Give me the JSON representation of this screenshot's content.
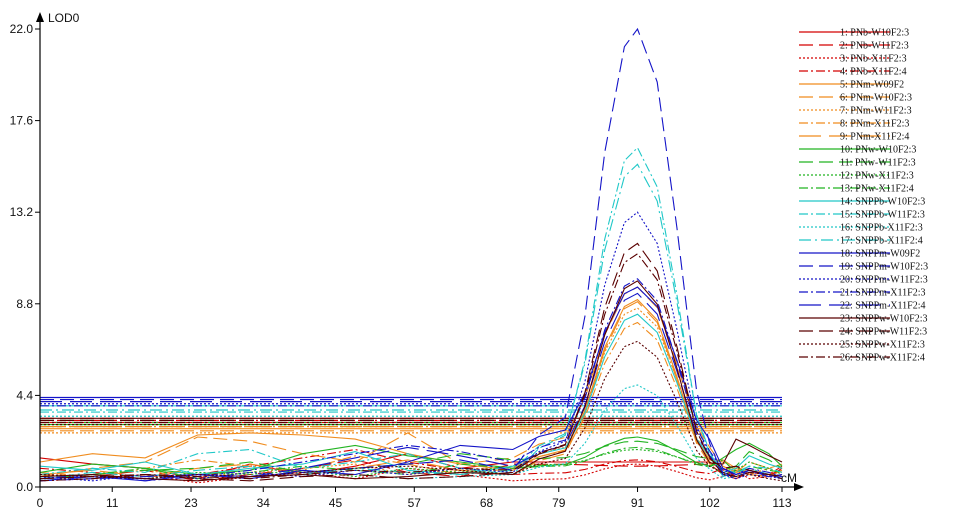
{
  "chart_data": {
    "type": "line",
    "title": "",
    "ylabel": "LOD0",
    "xlabel": "cM",
    "xlim": [
      0,
      113
    ],
    "ylim": [
      0,
      22
    ],
    "x_ticks": [
      "0",
      "11",
      "23",
      "34",
      "45",
      "57",
      "68",
      "79",
      "91",
      "102",
      "113"
    ],
    "x_tick_values": [
      0,
      11,
      23,
      34,
      45,
      57,
      68,
      79,
      91,
      102,
      113
    ],
    "y_ticks": [
      "0.0",
      "4.4",
      "8.8",
      "13.2",
      "17.6",
      "22.0"
    ],
    "y_tick_values": [
      0,
      4.4,
      8.8,
      13.2,
      17.6,
      22.0
    ],
    "legend_position": "right",
    "series": [
      {
        "name": "1: PNb-W10F2:3",
        "color": "#d40000",
        "dash": "solid",
        "threshold": 3.1,
        "peak": 1.2,
        "base": [
          1.4,
          1.1,
          0.9,
          0.4,
          1.1,
          0.6,
          1.0,
          1.6,
          0.9,
          1.2,
          0.8,
          1.0,
          0.6,
          0.5,
          0.9
        ]
      },
      {
        "name": "2: PNb-W11F2:3",
        "color": "#d40000",
        "dash": "longdash",
        "threshold": 3.3,
        "peak": 1.0,
        "base": [
          0.6,
          0.5,
          0.8,
          0.3,
          0.6,
          0.9,
          1.3,
          0.7,
          0.5,
          1.1,
          0.6,
          0.4,
          0.7,
          0.6,
          0.8
        ]
      },
      {
        "name": "3: PNb-X11F2:3",
        "color": "#d40000",
        "dash": "dot",
        "threshold": 3.0,
        "peak": 1.1,
        "base": [
          0.3,
          0.4,
          0.6,
          0.2,
          0.5,
          0.7,
          0.4,
          0.9,
          0.6,
          0.3,
          0.5,
          0.8,
          0.4,
          0.5,
          0.6
        ]
      },
      {
        "name": "4: PNb-X11F2:4",
        "color": "#d40000",
        "dash": "dashdot",
        "threshold": 3.2,
        "peak": 1.3,
        "base": [
          0.9,
          0.7,
          0.5,
          0.6,
          1.0,
          1.4,
          1.8,
          1.2,
          0.8,
          0.6,
          0.9,
          0.5,
          0.7,
          0.6,
          1.0
        ]
      },
      {
        "name": "5: PNm-W09F2",
        "color": "#f08c1e",
        "dash": "solid",
        "threshold": 2.8,
        "peak": 9.0,
        "base": [
          1.2,
          1.6,
          1.4,
          2.5,
          2.6,
          2.5,
          2.3,
          1.6,
          1.1,
          0.8,
          1.3,
          0.9,
          0.6,
          0.5,
          0.8
        ]
      },
      {
        "name": "6: PNm-W10F2:3",
        "color": "#f08c1e",
        "dash": "longdash",
        "threshold": 2.7,
        "peak": 9.6,
        "base": [
          0.5,
          0.9,
          1.2,
          2.4,
          2.2,
          1.6,
          1.2,
          2.6,
          1.1,
          1.4,
          1.0,
          0.7,
          1.2,
          0.9,
          1.1
        ]
      },
      {
        "name": "7: PNm-W11F2:3",
        "color": "#f08c1e",
        "dash": "dot",
        "threshold": 2.6,
        "peak": 8.6,
        "base": [
          0.4,
          0.6,
          0.8,
          0.5,
          0.7,
          0.9,
          1.1,
          0.6,
          0.8,
          1.0,
          0.7,
          0.5,
          0.9,
          0.6,
          0.7
        ]
      },
      {
        "name": "8: PNm-X11F2:3",
        "color": "#f08c1e",
        "dash": "dashdot",
        "threshold": 2.9,
        "peak": 7.9,
        "base": [
          0.7,
          0.5,
          0.9,
          1.3,
          1.0,
          0.8,
          1.5,
          1.1,
          0.6,
          0.9,
          1.2,
          0.8,
          0.6,
          0.9,
          0.7
        ]
      },
      {
        "name": "9: PNm-X11F2:4",
        "color": "#f08c1e",
        "dash": "longdash2",
        "threshold": 2.9,
        "peak": 8.9,
        "base": [
          0.6,
          0.8,
          0.5,
          0.9,
          1.1,
          0.7,
          0.9,
          1.3,
          0.8,
          0.6,
          1.0,
          0.7,
          0.8,
          0.5,
          0.6
        ]
      },
      {
        "name": "10: PNw-W10F2:3",
        "color": "#22b422",
        "dash": "solid",
        "threshold": 3.0,
        "peak": 2.4,
        "base": [
          0.7,
          1.1,
          0.9,
          0.6,
          0.8,
          1.6,
          2.0,
          1.5,
          1.2,
          0.9,
          1.4,
          1.8,
          2.1,
          1.6,
          1.0
        ]
      },
      {
        "name": "11: PNw-W11F2:3",
        "color": "#22b422",
        "dash": "longdash",
        "threshold": 3.2,
        "peak": 2.2,
        "base": [
          0.4,
          0.6,
          0.8,
          0.9,
          1.2,
          0.7,
          0.9,
          1.1,
          1.6,
          1.3,
          0.8,
          1.0,
          1.7,
          1.3,
          0.9
        ]
      },
      {
        "name": "12: PNw-X11F2:3",
        "color": "#22b422",
        "dash": "dot",
        "threshold": 3.1,
        "peak": 1.8,
        "base": [
          0.3,
          0.5,
          0.4,
          0.7,
          0.6,
          0.8,
          0.5,
          0.9,
          0.7,
          1.0,
          0.6,
          0.8,
          1.2,
          0.9,
          0.6
        ]
      },
      {
        "name": "13: PNw-X11F2:4",
        "color": "#22b422",
        "dash": "dashdot",
        "threshold": 3.0,
        "peak": 1.9,
        "base": [
          0.5,
          0.6,
          0.9,
          0.4,
          0.7,
          1.0,
          0.8,
          0.6,
          1.1,
          0.9,
          1.3,
          0.7,
          1.0,
          0.8,
          0.7
        ]
      },
      {
        "name": "14: SNPPb-W10F2:3",
        "color": "#20c8c8",
        "dash": "solid",
        "threshold": 3.9,
        "peak": 8.3,
        "base": [
          1.0,
          0.8,
          1.2,
          0.6,
          0.9,
          1.1,
          1.7,
          0.8,
          0.6,
          1.0,
          0.7,
          0.9,
          1.5,
          1.1,
          0.9
        ]
      },
      {
        "name": "15: SNPPb-W11F2:3",
        "color": "#20c8c8",
        "dash": "dashdot",
        "threshold": 3.6,
        "peak": 16.3,
        "base": [
          0.6,
          0.9,
          0.7,
          1.6,
          1.8,
          0.9,
          1.2,
          1.6,
          0.9,
          0.6,
          0.8,
          0.7,
          1.0,
          0.9,
          0.7
        ]
      },
      {
        "name": "16: SNPPb-X11F2:3",
        "color": "#20c8c8",
        "dash": "dot",
        "threshold": 3.4,
        "peak": 4.9,
        "base": [
          0.3,
          0.5,
          0.4,
          0.6,
          0.5,
          0.7,
          0.6,
          0.4,
          0.5,
          0.6,
          0.4,
          0.5,
          0.8,
          0.6,
          0.5
        ]
      },
      {
        "name": "17: SNPPb-X11F2:4",
        "color": "#20c8c8",
        "dash": "dashdot2",
        "threshold": 3.7,
        "peak": 15.5,
        "base": [
          0.4,
          0.7,
          0.5,
          0.8,
          1.0,
          0.6,
          0.9,
          0.7,
          0.6,
          0.8,
          0.5,
          0.7,
          0.9,
          0.6,
          0.5
        ]
      },
      {
        "name": "18: SNPPm-W09F2",
        "color": "#1414c8",
        "dash": "solid",
        "threshold": 4.3,
        "peak": 9.6,
        "base": [
          0.4,
          0.5,
          0.3,
          0.6,
          0.4,
          0.8,
          0.6,
          1.2,
          2.0,
          1.8,
          0.9,
          0.6,
          0.8,
          0.5,
          0.6
        ]
      },
      {
        "name": "19: SNPPm-W10F2:3",
        "color": "#1414c8",
        "dash": "longdash",
        "threshold": 4.2,
        "peak": 22.0,
        "base": [
          0.3,
          0.4,
          0.5,
          0.6,
          0.5,
          0.7,
          0.9,
          1.1,
          1.3,
          0.8,
          0.6,
          0.5,
          0.7,
          0.6,
          0.5
        ]
      },
      {
        "name": "20: SNPPm-W11F2:3",
        "color": "#1414c8",
        "dash": "dot",
        "threshold": 4.0,
        "peak": 13.2,
        "base": [
          0.5,
          0.3,
          0.6,
          0.4,
          0.7,
          0.5,
          0.8,
          0.6,
          0.9,
          0.7,
          0.6,
          0.4,
          0.6,
          0.5,
          0.4
        ]
      },
      {
        "name": "21: SNPPm-X11F2:3",
        "color": "#1414c8",
        "dash": "dashdot",
        "threshold": 3.9,
        "peak": 10.0,
        "base": [
          0.4,
          0.6,
          0.3,
          0.5,
          0.8,
          1.2,
          1.6,
          2.0,
          1.7,
          1.2,
          0.8,
          0.6,
          0.9,
          0.7,
          0.5
        ]
      },
      {
        "name": "22: SNPPm-X11F2:4",
        "color": "#1414c8",
        "dash": "longdash2",
        "threshold": 4.1,
        "peak": 9.3,
        "base": [
          0.3,
          0.5,
          0.4,
          0.6,
          0.5,
          0.9,
          1.4,
          1.9,
          1.5,
          1.0,
          0.7,
          0.5,
          0.8,
          0.6,
          0.4
        ]
      },
      {
        "name": "23: SNPPw-W10F2:3",
        "color": "#5a0000",
        "dash": "solid",
        "threshold": 3.3,
        "peak": 9.9,
        "base": [
          0.5,
          0.6,
          0.4,
          0.3,
          0.5,
          0.6,
          0.4,
          0.5,
          0.7,
          0.6,
          1.1,
          2.3,
          2.0,
          1.5,
          1.2
        ]
      },
      {
        "name": "24: SNPPw-W11F2:3",
        "color": "#5a0000",
        "dash": "longdash",
        "threshold": 3.2,
        "peak": 11.7,
        "base": [
          0.4,
          0.5,
          0.6,
          0.4,
          0.3,
          0.5,
          0.6,
          0.4,
          0.5,
          0.7,
          0.9,
          1.0,
          0.8,
          0.6,
          0.5
        ]
      },
      {
        "name": "25: SNPPw-X11F2:3",
        "color": "#5a0000",
        "dash": "dot",
        "threshold": 3.0,
        "peak": 7.0,
        "base": [
          0.6,
          0.5,
          0.4,
          0.6,
          0.5,
          0.7,
          0.9,
          1.0,
          0.8,
          0.6,
          0.7,
          0.5,
          0.6,
          0.4,
          0.3
        ]
      },
      {
        "name": "26: SNPPw-X11F2:4",
        "color": "#5a0000",
        "dash": "dashdot",
        "threshold": 3.1,
        "peak": 11.2,
        "base": [
          0.3,
          0.4,
          0.6,
          0.5,
          0.4,
          0.6,
          0.8,
          0.7,
          0.9,
          0.8,
          0.6,
          0.5,
          0.7,
          0.6,
          0.4
        ]
      }
    ],
    "base_x": [
      0,
      8,
      16,
      24,
      32,
      40,
      48,
      56,
      64,
      72,
      104,
      106,
      108,
      111,
      113
    ],
    "peak_profile": {
      "x": [
        76,
        80,
        83,
        86,
        89,
        91,
        94,
        97,
        100,
        102
      ],
      "shape": [
        0.08,
        0.12,
        0.35,
        0.72,
        0.96,
        1.0,
        0.88,
        0.55,
        0.18,
        0.06
      ]
    }
  }
}
